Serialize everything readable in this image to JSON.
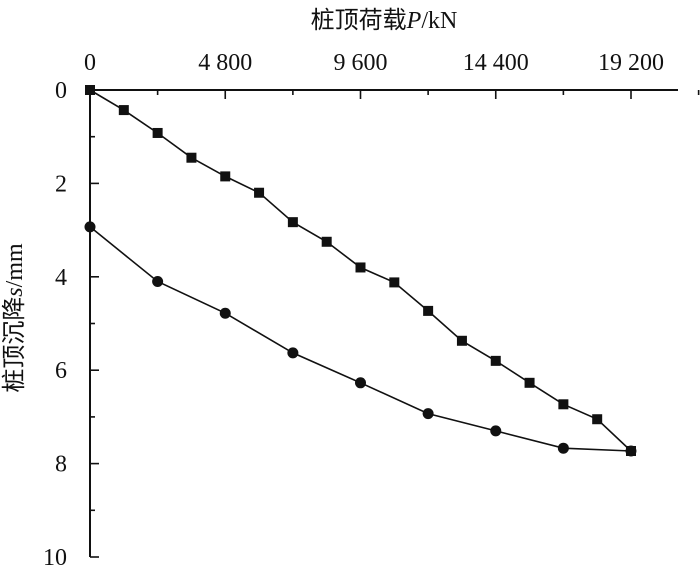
{
  "chart_data": {
    "type": "line",
    "xlabel_main": "桩顶荷载",
    "xlabel_symbol": "P",
    "xlabel_unit": "/kN",
    "ylabel_main": "桩顶沉降",
    "ylabel_symbol": "s",
    "ylabel_unit": "/mm",
    "x_axis_position": "top",
    "y_axis_inverted": true,
    "xlim": [
      0,
      21600
    ],
    "ylim": [
      0,
      10
    ],
    "x_ticks": [
      0,
      4800,
      9600,
      14400,
      19200
    ],
    "x_tick_labels": [
      "0",
      "4 800",
      "9 600",
      "14 400",
      "19 200"
    ],
    "y_ticks": [
      0,
      2,
      4,
      6,
      8,
      10
    ],
    "y_tick_labels": [
      "0",
      "2",
      "4",
      "6",
      "8",
      "10"
    ],
    "grid": false,
    "series": [
      {
        "marker": "square",
        "x": [
          0,
          1200,
          2400,
          3600,
          4800,
          6000,
          7200,
          8400,
          9600,
          10800,
          12000,
          13200,
          14400,
          15600,
          16800,
          18000,
          19200
        ],
        "y": [
          0,
          0.43,
          0.92,
          1.45,
          1.85,
          2.2,
          2.83,
          3.25,
          3.8,
          4.12,
          4.73,
          5.37,
          5.8,
          6.27,
          6.73,
          7.05,
          7.73
        ]
      },
      {
        "marker": "circle",
        "x": [
          19200,
          16800,
          14400,
          12000,
          9600,
          7200,
          4800,
          2400,
          0
        ],
        "y": [
          7.73,
          7.67,
          7.3,
          6.93,
          6.27,
          5.63,
          4.78,
          4.1,
          2.93
        ]
      }
    ]
  }
}
